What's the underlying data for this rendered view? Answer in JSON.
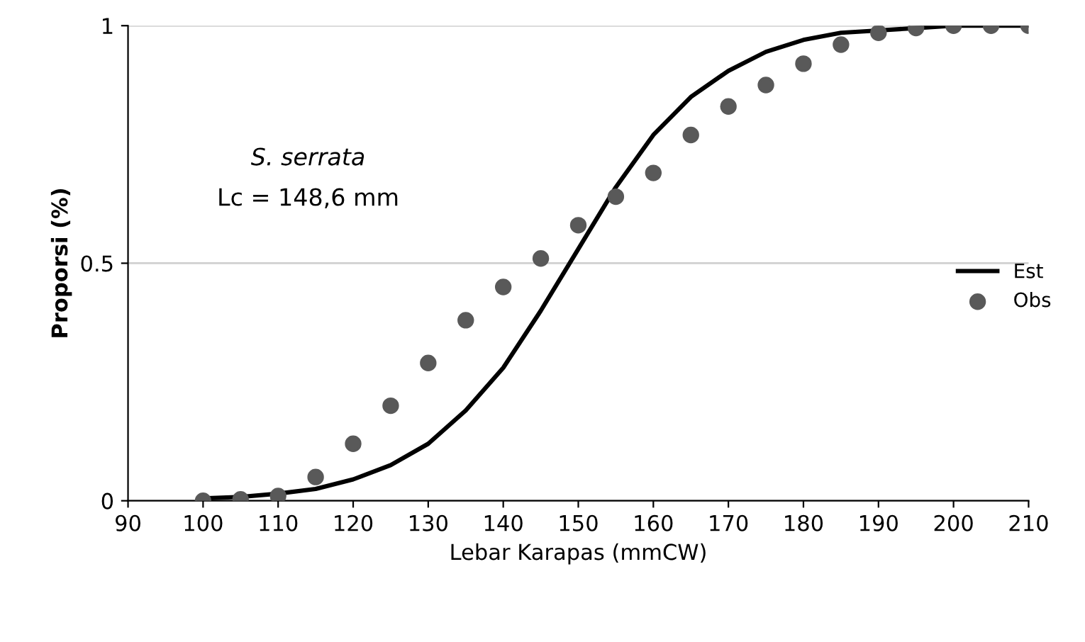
{
  "chart_data": {
    "type": "line",
    "xlabel": "Lebar Karapas (mmCW)",
    "ylabel": "Proporsi (%)",
    "annotations": [
      "S. serrata",
      "Lc = 148,6 mm"
    ],
    "xlim": [
      90,
      210
    ],
    "xticks": [
      90,
      100,
      110,
      120,
      130,
      140,
      150,
      160,
      170,
      180,
      190,
      200,
      210
    ],
    "ylim": [
      0,
      1
    ],
    "yticks": [
      0,
      0.5,
      1
    ],
    "grid": "y",
    "legend": "right",
    "series": [
      {
        "name": "Est",
        "color": "#000000",
        "marker": "none",
        "line_style": "solid",
        "x": [
          100,
          105,
          110,
          115,
          120,
          125,
          130,
          135,
          140,
          145,
          150,
          155,
          160,
          165,
          170,
          175,
          180,
          185,
          190,
          195,
          200,
          205,
          210
        ],
        "values": [
          0.005,
          0.008,
          0.015,
          0.025,
          0.045,
          0.075,
          0.12,
          0.19,
          0.28,
          0.4,
          0.53,
          0.66,
          0.77,
          0.85,
          0.905,
          0.945,
          0.97,
          0.985,
          0.99,
          0.995,
          1,
          1,
          1
        ]
      },
      {
        "name": "Obs",
        "type": "scatter",
        "color": "#595959",
        "marker": "circle",
        "x": [
          100,
          105,
          110,
          115,
          120,
          125,
          130,
          135,
          140,
          145,
          150,
          155,
          160,
          165,
          170,
          175,
          180,
          185,
          190,
          195,
          200,
          205,
          210
        ],
        "values": [
          0,
          0.003,
          0.01,
          0.05,
          0.12,
          0.2,
          0.29,
          0.38,
          0.45,
          0.51,
          0.58,
          0.64,
          0.69,
          0.77,
          0.83,
          0.875,
          0.92,
          0.96,
          0.985,
          0.995,
          1,
          1,
          1
        ]
      }
    ]
  }
}
